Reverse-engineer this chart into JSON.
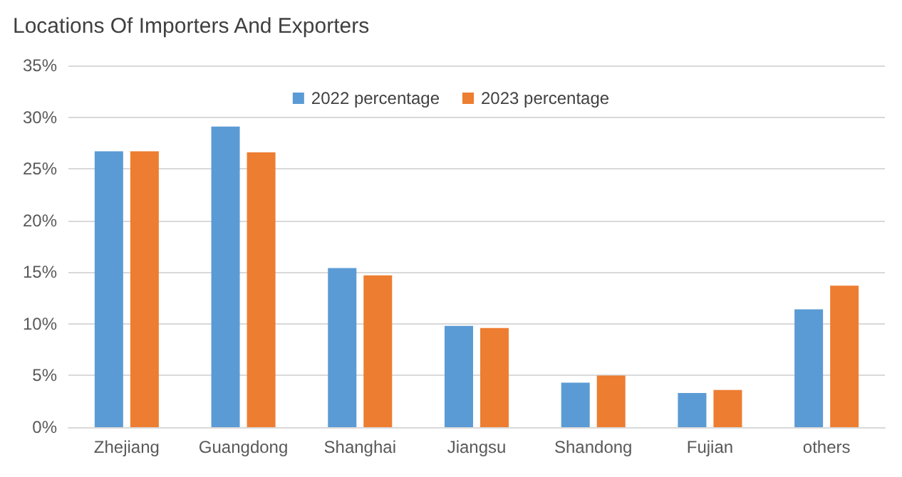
{
  "chart_data": {
    "type": "bar",
    "title": "Locations Of Importers And Exporters",
    "categories": [
      "Zhejiang",
      "Guangdong",
      "Shanghai",
      "Jiangsu",
      "Shandong",
      "Fujian",
      "others"
    ],
    "series": [
      {
        "name": "2022 percentage",
        "color": "#5b9bd5",
        "values": [
          26.7,
          29.1,
          15.4,
          9.8,
          4.3,
          3.3,
          11.4
        ]
      },
      {
        "name": "2023 percentage",
        "color": "#ed7d31",
        "values": [
          26.7,
          26.6,
          14.7,
          9.6,
          5.0,
          3.6,
          13.7
        ]
      }
    ],
    "ylim": [
      0,
      35
    ],
    "yticks": [
      {
        "value": 0,
        "label": "0%"
      },
      {
        "value": 5,
        "label": "5%"
      },
      {
        "value": 10,
        "label": "10%"
      },
      {
        "value": 15,
        "label": "15%"
      },
      {
        "value": 20,
        "label": "20%"
      },
      {
        "value": 25,
        "label": "25%"
      },
      {
        "value": 30,
        "label": "30%"
      },
      {
        "value": 35,
        "label": "35%"
      }
    ],
    "grid": "y",
    "legend": "top"
  }
}
